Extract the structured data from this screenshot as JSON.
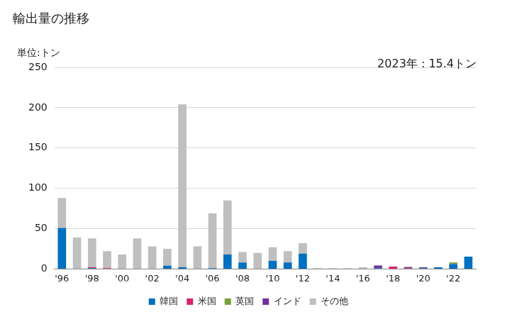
{
  "chart_data": {
    "type": "bar",
    "title": "輸出量の推移",
    "y_label": "単位:トン",
    "annotations": [
      "2023年 : 15.4トン"
    ],
    "categories": [
      "'96",
      null,
      "'98",
      null,
      "'00",
      null,
      "'02",
      null,
      "'04",
      null,
      "'06",
      null,
      "'08",
      null,
      "'10",
      null,
      "'12",
      null,
      "'14",
      null,
      "'16",
      null,
      "'18",
      null,
      "'20",
      null,
      "'22",
      null
    ],
    "series": [
      {
        "name": "韓国",
        "color": "#0070c0",
        "values": [
          51,
          0,
          1,
          0,
          0,
          0,
          0,
          4,
          2,
          0,
          1,
          18,
          8,
          0,
          10,
          8,
          19,
          0,
          0,
          0,
          0,
          1,
          0,
          0,
          1,
          2,
          6,
          15.4
        ]
      },
      {
        "name": "米国",
        "color": "#d6246e",
        "values": [
          0,
          0,
          1,
          1,
          0,
          0,
          0,
          0,
          0,
          0,
          0,
          0,
          0,
          0,
          0,
          0,
          0,
          0,
          0,
          0,
          0,
          0,
          3,
          1,
          0,
          0,
          0,
          0
        ]
      },
      {
        "name": "英国",
        "color": "#77a13a",
        "values": [
          0,
          0,
          0,
          0,
          0,
          0,
          0,
          0,
          0,
          0,
          0,
          0,
          0,
          0,
          0,
          0,
          0,
          0,
          0,
          0,
          0,
          0,
          0,
          0,
          0,
          0,
          2,
          0
        ]
      },
      {
        "name": "インド",
        "color": "#7030a0",
        "values": [
          0,
          0,
          0,
          0,
          0,
          0,
          0,
          0,
          0,
          0,
          0,
          0,
          0,
          0,
          0,
          0,
          0,
          0,
          0,
          0,
          0,
          3,
          0,
          1,
          1,
          0,
          0,
          0
        ]
      },
      {
        "name": "その他",
        "color": "#bfbfbf",
        "values": [
          37,
          39,
          36,
          21,
          18,
          38,
          28,
          21,
          202,
          28,
          68,
          67,
          13,
          20,
          17,
          14,
          13,
          1,
          1,
          1,
          2,
          1,
          0,
          1,
          0,
          0,
          0,
          0
        ]
      }
    ],
    "ylim": [
      0,
      250
    ],
    "yticks": [
      0,
      50,
      100,
      150,
      200,
      250
    ],
    "stacked": true,
    "grid": "y",
    "legend": "bottom"
  }
}
